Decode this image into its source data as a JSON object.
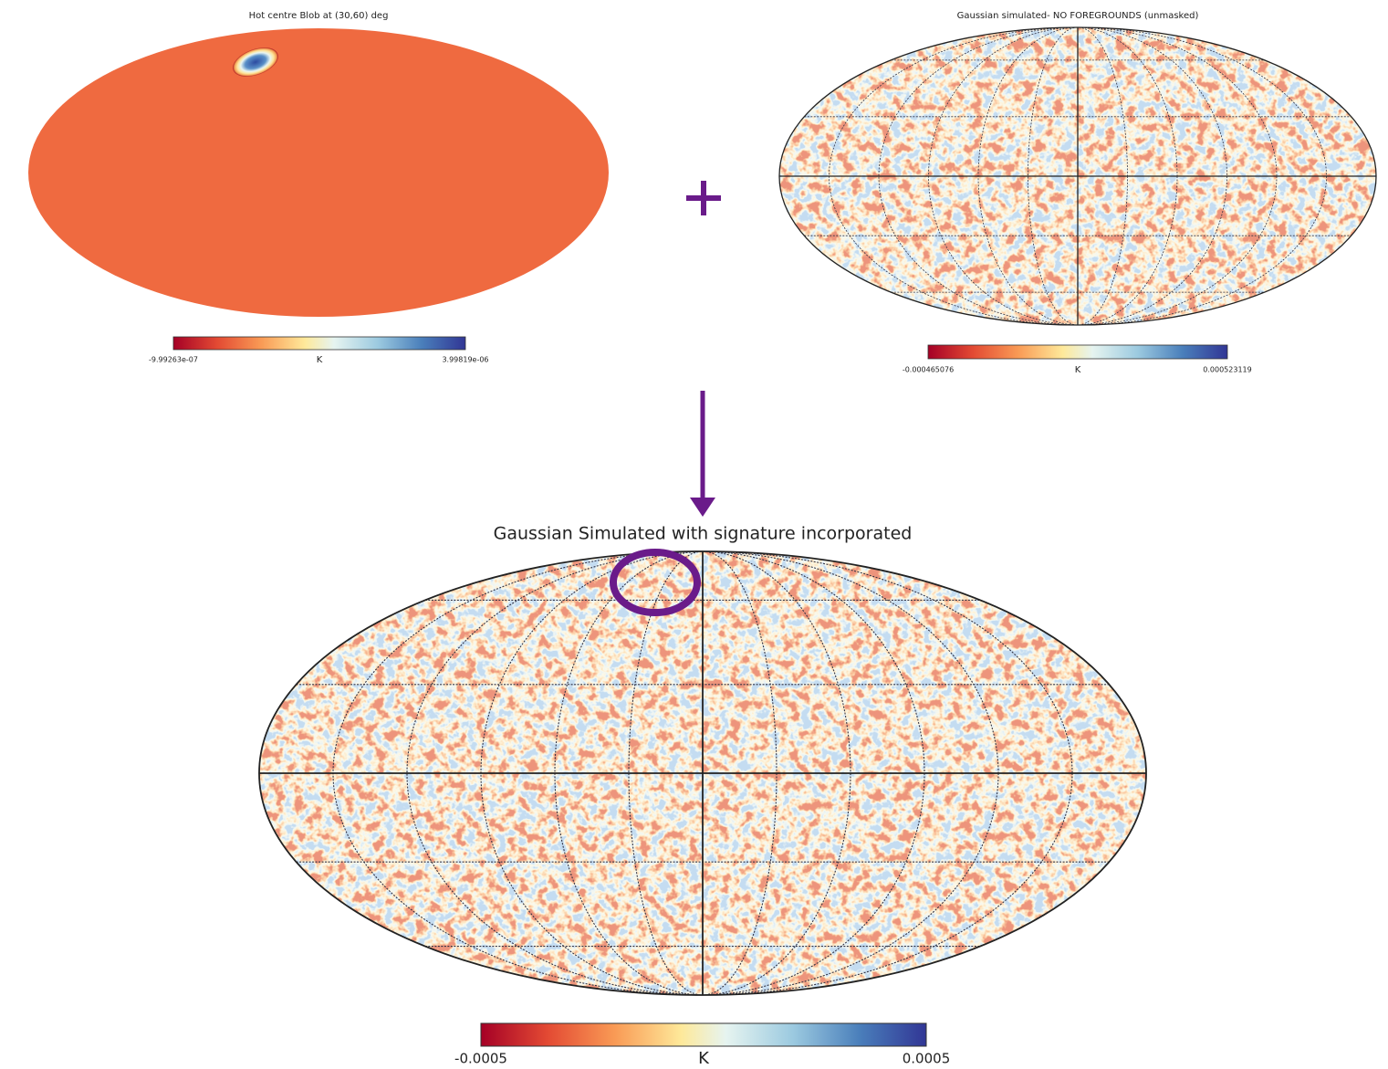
{
  "panels": [
    {
      "title": "Hot centre Blob at (30,60) deg",
      "colorbar": {
        "min": "-9.99263e-07",
        "unit": "K",
        "max": "3.99819e-06"
      }
    },
    {
      "title": "Gaussian simulated- NO FOREGROUNDS (unmasked)",
      "colorbar": {
        "min": "-0.000465076",
        "unit": "K",
        "max": "0.000523119"
      }
    },
    {
      "title": "Gaussian Simulated with signature incorporated",
      "colorbar": {
        "min": "-0.0005",
        "unit": "K",
        "max": "0.0005"
      }
    }
  ]
}
